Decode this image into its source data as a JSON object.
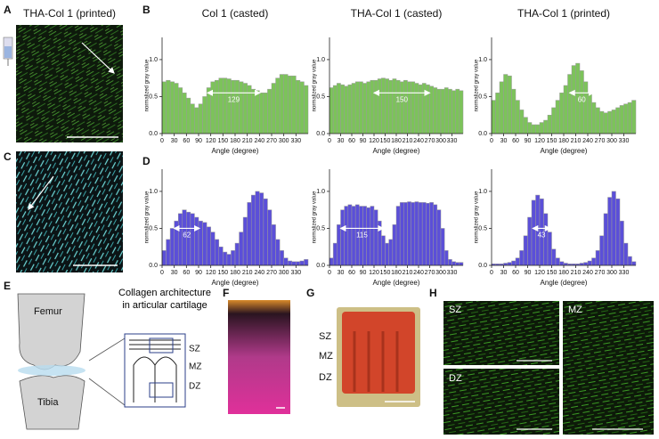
{
  "panels": {
    "A": {
      "label": "A",
      "title": "THA-Col 1 (printed)"
    },
    "B": {
      "label": "B"
    },
    "C": {
      "label": "C"
    },
    "D": {
      "label": "D"
    },
    "E": {
      "label": "E",
      "title": "Collagen architecture in articular cartilage",
      "femur": "Femur",
      "tibia": "Tibia",
      "zones": [
        "SZ",
        "MZ",
        "DZ"
      ]
    },
    "F": {
      "label": "F"
    },
    "G": {
      "label": "G",
      "zones": [
        "SZ",
        "MZ",
        "DZ"
      ]
    },
    "H": {
      "label": "H",
      "zones": [
        "SZ",
        "MZ",
        "DZ"
      ]
    }
  },
  "chart_data": [
    {
      "type": "histogram",
      "title": "Col 1 (casted)",
      "x_label": "Angle (degree)",
      "y_label": "normalized gray value",
      "color": "#7cc35a",
      "bins": [
        0,
        10,
        20,
        30,
        40,
        50,
        60,
        70,
        80,
        90,
        100,
        110,
        120,
        130,
        140,
        150,
        160,
        170,
        180,
        190,
        200,
        210,
        220,
        230,
        240,
        250,
        260,
        270,
        280,
        290,
        300,
        310,
        320,
        330,
        340,
        350,
        360
      ],
      "values": [
        0.7,
        0.72,
        0.7,
        0.68,
        0.62,
        0.55,
        0.48,
        0.4,
        0.35,
        0.4,
        0.5,
        0.62,
        0.7,
        0.72,
        0.75,
        0.75,
        0.74,
        0.72,
        0.72,
        0.7,
        0.68,
        0.65,
        0.6,
        0.58,
        0.55,
        0.55,
        0.6,
        0.68,
        0.75,
        0.8,
        0.8,
        0.78,
        0.78,
        0.72,
        0.7,
        0.65
      ],
      "xlim": [
        0,
        360
      ],
      "xticks": [
        0,
        30,
        60,
        90,
        120,
        150,
        180,
        210,
        240,
        270,
        300,
        330
      ],
      "ylim": [
        0,
        1.3
      ],
      "yticks": [
        {
          "value": 0,
          "label": "0.0"
        },
        {
          "value": 0.5,
          "label": "0.5"
        },
        {
          "value": 1,
          "label": "1.0"
        }
      ],
      "span_label": "129",
      "span": [
        112,
        241
      ],
      "span_y": 0.55
    },
    {
      "type": "histogram",
      "title": "THA-Col 1 (casted)",
      "x_label": "Angle (degree)",
      "y_label": "normalized gray value",
      "color": "#7cc35a",
      "bins": [
        0,
        10,
        20,
        30,
        40,
        50,
        60,
        70,
        80,
        90,
        100,
        110,
        120,
        130,
        140,
        150,
        160,
        170,
        180,
        190,
        200,
        210,
        220,
        230,
        240,
        250,
        260,
        270,
        280,
        290,
        300,
        310,
        320,
        330,
        340,
        350,
        360
      ],
      "values": [
        0.62,
        0.65,
        0.68,
        0.66,
        0.64,
        0.66,
        0.68,
        0.7,
        0.7,
        0.68,
        0.7,
        0.72,
        0.72,
        0.74,
        0.75,
        0.74,
        0.72,
        0.74,
        0.72,
        0.7,
        0.72,
        0.7,
        0.7,
        0.68,
        0.66,
        0.68,
        0.66,
        0.64,
        0.62,
        0.6,
        0.6,
        0.62,
        0.6,
        0.58,
        0.6,
        0.58
      ],
      "xlim": [
        0,
        360
      ],
      "xticks": [
        0,
        30,
        60,
        90,
        120,
        150,
        180,
        210,
        240,
        270,
        300,
        330
      ],
      "ylim": [
        0,
        1.3
      ],
      "yticks": [
        {
          "value": 0,
          "label": "0.0"
        },
        {
          "value": 0.5,
          "label": "0.5"
        },
        {
          "value": 1,
          "label": "1.0"
        }
      ],
      "span_label": "150",
      "span": [
        120,
        270
      ],
      "span_y": 0.55
    },
    {
      "type": "histogram",
      "title": "THA-Col 1 (printed)",
      "x_label": "Angle (degree)",
      "y_label": "normalized gray value",
      "color": "#7cc35a",
      "bins": [
        0,
        10,
        20,
        30,
        40,
        50,
        60,
        70,
        80,
        90,
        100,
        110,
        120,
        130,
        140,
        150,
        160,
        170,
        180,
        190,
        200,
        210,
        220,
        230,
        240,
        250,
        260,
        270,
        280,
        290,
        300,
        310,
        320,
        330,
        340,
        350,
        360
      ],
      "values": [
        0.45,
        0.55,
        0.7,
        0.8,
        0.78,
        0.6,
        0.45,
        0.32,
        0.22,
        0.15,
        0.12,
        0.12,
        0.15,
        0.18,
        0.25,
        0.35,
        0.45,
        0.55,
        0.65,
        0.8,
        0.92,
        0.95,
        0.85,
        0.7,
        0.55,
        0.42,
        0.35,
        0.3,
        0.28,
        0.3,
        0.32,
        0.35,
        0.38,
        0.4,
        0.42,
        0.45
      ],
      "xlim": [
        0,
        360
      ],
      "xticks": [
        0,
        30,
        60,
        90,
        120,
        150,
        180,
        210,
        240,
        270,
        300,
        330
      ],
      "ylim": [
        0,
        1.3
      ],
      "yticks": [
        {
          "value": 0,
          "label": "0.0"
        },
        {
          "value": 0.5,
          "label": "0.5"
        },
        {
          "value": 1,
          "label": "1.0"
        }
      ],
      "span_label": "60",
      "span": [
        195,
        255
      ],
      "span_y": 0.55
    },
    {
      "type": "histogram",
      "x_label": "Angle (degree)",
      "y_label": "normalized gray value",
      "color": "#5b4fd8",
      "bins": [
        0,
        10,
        20,
        30,
        40,
        50,
        60,
        70,
        80,
        90,
        100,
        110,
        120,
        130,
        140,
        150,
        160,
        170,
        180,
        190,
        200,
        210,
        220,
        230,
        240,
        250,
        260,
        270,
        280,
        290,
        300,
        310,
        320,
        330,
        340,
        350,
        360
      ],
      "values": [
        0.2,
        0.35,
        0.5,
        0.6,
        0.7,
        0.75,
        0.72,
        0.7,
        0.65,
        0.6,
        0.58,
        0.52,
        0.45,
        0.35,
        0.25,
        0.18,
        0.15,
        0.2,
        0.3,
        0.45,
        0.65,
        0.85,
        0.95,
        1.0,
        0.98,
        0.9,
        0.75,
        0.55,
        0.35,
        0.2,
        0.1,
        0.06,
        0.05,
        0.05,
        0.06,
        0.08
      ],
      "xlim": [
        0,
        360
      ],
      "xticks": [
        0,
        30,
        60,
        90,
        120,
        150,
        180,
        210,
        240,
        270,
        300,
        330
      ],
      "ylim": [
        0,
        1.3
      ],
      "yticks": [
        {
          "value": 0,
          "label": "0.0"
        },
        {
          "value": 0.5,
          "label": "0.5"
        },
        {
          "value": 1,
          "label": "1.0"
        }
      ],
      "span_label": "62",
      "span": [
        30,
        92
      ],
      "span_y": 0.5
    },
    {
      "type": "histogram",
      "x_label": "Angle (degree)",
      "y_label": "normalized gray value",
      "color": "#5b4fd8",
      "bins": [
        0,
        10,
        20,
        30,
        40,
        50,
        60,
        70,
        80,
        90,
        100,
        110,
        120,
        130,
        140,
        150,
        160,
        170,
        180,
        190,
        200,
        210,
        220,
        230,
        240,
        250,
        260,
        270,
        280,
        290,
        300,
        310,
        320,
        330,
        340,
        350,
        360
      ],
      "values": [
        0.1,
        0.3,
        0.55,
        0.75,
        0.8,
        0.82,
        0.8,
        0.82,
        0.8,
        0.8,
        0.78,
        0.8,
        0.75,
        0.6,
        0.4,
        0.3,
        0.35,
        0.55,
        0.8,
        0.85,
        0.85,
        0.86,
        0.85,
        0.86,
        0.85,
        0.85,
        0.84,
        0.85,
        0.82,
        0.75,
        0.5,
        0.2,
        0.08,
        0.05,
        0.04,
        0.04
      ],
      "xlim": [
        0,
        360
      ],
      "xticks": [
        0,
        30,
        60,
        90,
        120,
        150,
        180,
        210,
        240,
        270,
        300,
        330
      ],
      "ylim": [
        0,
        1.3
      ],
      "yticks": [
        {
          "value": 0,
          "label": "0.0"
        },
        {
          "value": 0.5,
          "label": "0.5"
        },
        {
          "value": 1,
          "label": "1.0"
        }
      ],
      "span_label": "115",
      "span": [
        30,
        145
      ],
      "span_y": 0.5
    },
    {
      "type": "histogram",
      "x_label": "Angle (degree)",
      "y_label": "normalized gray value",
      "color": "#5b4fd8",
      "bins": [
        0,
        10,
        20,
        30,
        40,
        50,
        60,
        70,
        80,
        90,
        100,
        110,
        120,
        130,
        140,
        150,
        160,
        170,
        180,
        190,
        200,
        210,
        220,
        230,
        240,
        250,
        260,
        270,
        280,
        290,
        300,
        310,
        320,
        330,
        340,
        350,
        360
      ],
      "values": [
        0.02,
        0.02,
        0.02,
        0.03,
        0.04,
        0.06,
        0.1,
        0.2,
        0.4,
        0.65,
        0.88,
        0.95,
        0.9,
        0.7,
        0.45,
        0.22,
        0.1,
        0.05,
        0.03,
        0.02,
        0.02,
        0.02,
        0.03,
        0.04,
        0.06,
        0.1,
        0.2,
        0.4,
        0.7,
        0.92,
        1.0,
        0.9,
        0.6,
        0.3,
        0.12,
        0.05
      ],
      "xlim": [
        0,
        360
      ],
      "xticks": [
        0,
        30,
        60,
        90,
        120,
        150,
        180,
        210,
        240,
        270,
        300,
        330
      ],
      "ylim": [
        0,
        1.3
      ],
      "yticks": [
        {
          "value": 0,
          "label": "0.0"
        },
        {
          "value": 0.5,
          "label": "0.5"
        },
        {
          "value": 1,
          "label": "1.0"
        }
      ],
      "span_label": "43",
      "span": [
        103,
        146
      ],
      "span_y": 0.5
    }
  ]
}
